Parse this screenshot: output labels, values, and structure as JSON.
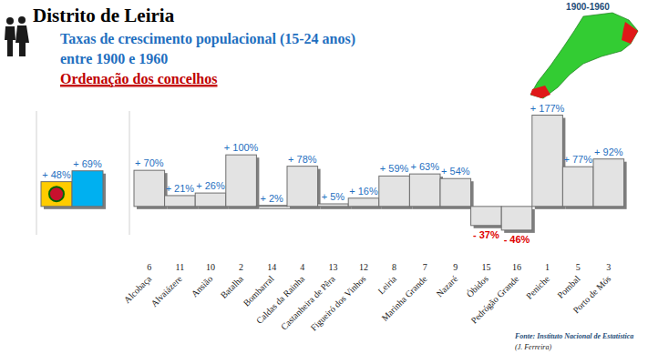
{
  "header": {
    "title": "Distrito de Leiria",
    "subtitle": "Taxas de crescimento populacional (15-24 anos)",
    "period": "entre 1900 e 1960",
    "heading": "Ordenação dos concelhos",
    "map_label": "1900-1960",
    "source": "Fonte: Instituto Nacional de Estatística",
    "author": "(J. Ferreira)"
  },
  "chart_data": [
    {
      "type": "bar",
      "categories": [
        null,
        null
      ],
      "values": [
        48,
        69
      ],
      "value_labels": [
        "+ 48%",
        "+ 69%"
      ],
      "colors": [
        "#ffcc00",
        "#00b0f0"
      ],
      "ylim": [
        -55,
        185
      ],
      "data_labels": true,
      "tick_labels": false,
      "grid": false
    },
    {
      "type": "bar",
      "categories": [
        "Alcobaça",
        "Alvaiázere",
        "Ansião",
        "Batalha",
        "Bombarral",
        "Caldas da Rainha",
        "Castanheira de Pêra",
        "Figueiró dos Vinhos",
        "Leiria",
        "Marinha Grande",
        "Nazaré",
        "Óbidos",
        "Pedrógão Grande",
        "Peniche",
        "Pombal",
        "Porto de Mós"
      ],
      "ranks": [
        6,
        11,
        10,
        2,
        14,
        4,
        13,
        12,
        8,
        7,
        9,
        15,
        16,
        1,
        5,
        3
      ],
      "values": [
        70,
        21,
        26,
        100,
        2,
        78,
        5,
        16,
        59,
        63,
        54,
        -37,
        -46,
        177,
        77,
        92
      ],
      "value_labels": [
        "+ 70%",
        "+ 21%",
        "+ 26%",
        "+ 100%",
        "+ 2%",
        "+ 78%",
        "+ 5%",
        "+ 16%",
        "+ 59%",
        "+ 63%",
        "+ 54%",
        "- 37%",
        "- 46%",
        "+ 177%",
        "+ 77%",
        "+ 92%"
      ],
      "color": "#e3e3e3",
      "ylim": [
        -55,
        185
      ],
      "data_labels": true,
      "tick_labels": "x",
      "grid": false
    }
  ]
}
